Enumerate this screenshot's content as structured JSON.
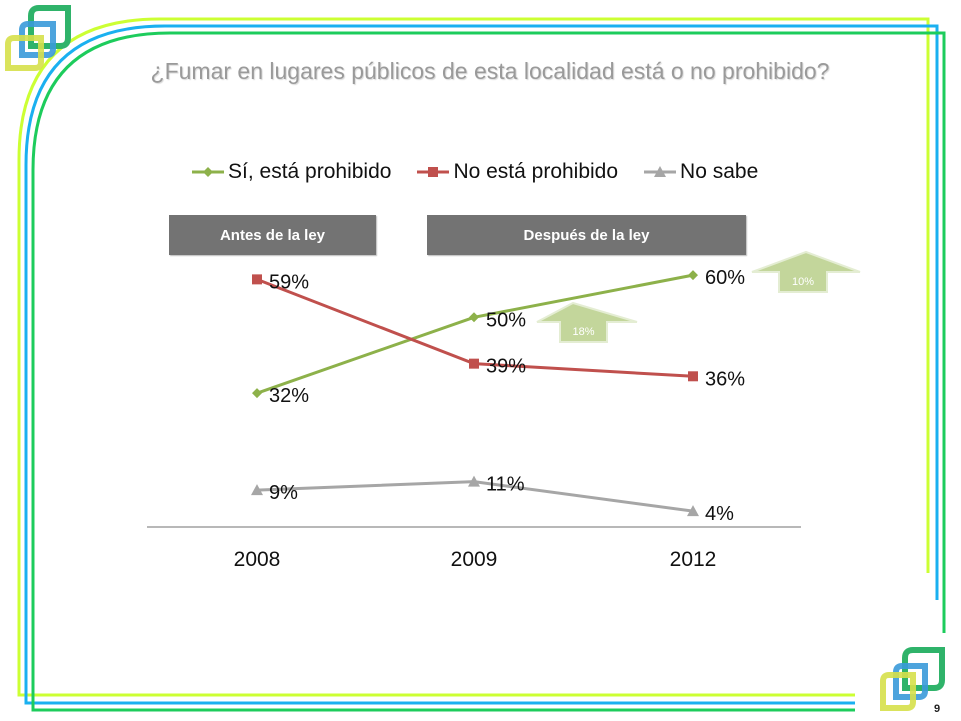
{
  "slide": {
    "title": "¿Fumar en lugares públicos de esta localidad está  o no prohibido?",
    "page_number": "9",
    "periods": [
      {
        "label": "Antes de la ley"
      },
      {
        "label": "Después de la ley"
      }
    ],
    "change_arrows": [
      {
        "label": "18%",
        "between": [
          "2008",
          "2009"
        ]
      },
      {
        "label": "10%",
        "between": [
          "2009",
          "2012"
        ]
      }
    ],
    "colors": {
      "frame_yellow": "#ccff33",
      "frame_blue": "#1ab0f0",
      "frame_green": "#1dcc5c",
      "period_box": "#737373",
      "arrow_fill": "#c3d69b"
    }
  },
  "chart_data": {
    "type": "line",
    "title": "¿Fumar en lugares públicos de esta localidad está  o no prohibido?",
    "xlabel": "",
    "ylabel": "",
    "categories": [
      "2008",
      "2009",
      "2012"
    ],
    "ylim": [
      0,
      65
    ],
    "grid": false,
    "legend_position": "top",
    "series": [
      {
        "name": "Sí, está prohibido",
        "color": "#8db14a",
        "marker": "diamond",
        "values": [
          32,
          50,
          60
        ],
        "labels": [
          "32%",
          "50%",
          "60%"
        ]
      },
      {
        "name": "No está prohibido",
        "color": "#c0504d",
        "marker": "square",
        "values": [
          59,
          39,
          36
        ],
        "labels": [
          "59%",
          "39%",
          "36%"
        ]
      },
      {
        "name": "No sabe",
        "color": "#a6a6a6",
        "marker": "triangle",
        "values": [
          9,
          11,
          4
        ],
        "labels": [
          "9%",
          "11%",
          "4%"
        ]
      }
    ]
  }
}
